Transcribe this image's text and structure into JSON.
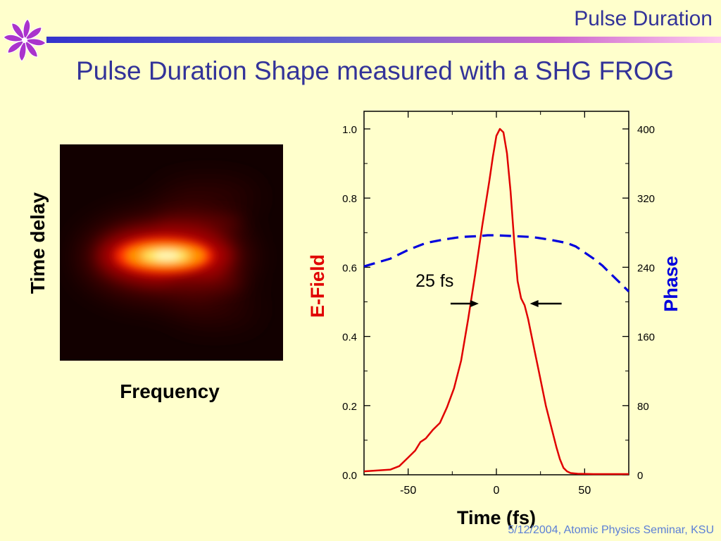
{
  "header": {
    "section_title": "Pulse Duration"
  },
  "slide": {
    "title": "Pulse Duration Shape measured with a SHG FROG"
  },
  "frog": {
    "ylabel": "Time delay",
    "xlabel": "Frequency",
    "colormap": "hot"
  },
  "footer": {
    "text": "5/12/2004, Atomic Physics Seminar, KSU"
  },
  "colors": {
    "title": "#333399",
    "efield": "#e00000",
    "phase": "#0000dd",
    "background": "#ffffcc"
  },
  "chart_data": {
    "type": "line",
    "title": "",
    "xlabel": "Time (fs)",
    "ylabel": "E-Field",
    "y2label": "Phase",
    "xlim": [
      -75,
      75
    ],
    "ylim": [
      0,
      1.0
    ],
    "y2lim": [
      0,
      400
    ],
    "xticks": [
      "-50",
      "0",
      "50"
    ],
    "xtick_values": [
      -50,
      0,
      50
    ],
    "yticks": [
      "0.0",
      "0.2",
      "0.4",
      "0.6",
      "0.8",
      "1.0"
    ],
    "ytick_values": [
      0,
      0.2,
      0.4,
      0.6,
      0.8,
      1.0
    ],
    "y2ticks": [
      "0",
      "80",
      "160",
      "240",
      "320",
      "400"
    ],
    "y2tick_values": [
      0,
      80,
      160,
      240,
      320,
      400
    ],
    "grid": false,
    "series": [
      {
        "name": "E-Field",
        "axis": "left",
        "style": "solid",
        "x": [
          -75,
          -60,
          -55,
          -50,
          -46,
          -43,
          -40,
          -36,
          -32,
          -28,
          -24,
          -20,
          -16,
          -12,
          -8,
          -4,
          -2,
          0,
          2,
          4,
          6,
          8,
          10,
          12,
          14,
          16,
          18,
          20,
          22,
          24,
          26,
          28,
          30,
          32,
          34,
          36,
          38,
          40,
          42,
          46,
          55,
          75
        ],
        "values": [
          0.01,
          0.015,
          0.025,
          0.05,
          0.07,
          0.095,
          0.105,
          0.13,
          0.15,
          0.195,
          0.25,
          0.33,
          0.45,
          0.58,
          0.72,
          0.85,
          0.92,
          0.98,
          1.0,
          0.99,
          0.93,
          0.82,
          0.68,
          0.56,
          0.51,
          0.49,
          0.45,
          0.4,
          0.35,
          0.3,
          0.25,
          0.2,
          0.16,
          0.12,
          0.08,
          0.045,
          0.02,
          0.01,
          0.005,
          0.003,
          0.002,
          0.002
        ]
      },
      {
        "name": "Phase",
        "axis": "right",
        "style": "dashed",
        "x": [
          -75,
          -60,
          -50,
          -40,
          -30,
          -20,
          -10,
          -5,
          0,
          10,
          20,
          30,
          40,
          45,
          50,
          55,
          60,
          65,
          70,
          75
        ],
        "values": [
          241,
          250,
          260,
          268,
          272,
          275,
          276,
          277,
          277,
          276,
          275,
          272,
          268,
          264,
          257,
          250,
          242,
          232,
          222,
          212
        ]
      }
    ],
    "annotations": [
      {
        "text": "25 fs",
        "x": -35,
        "y": 0.56
      }
    ],
    "fwhm_arrows": {
      "left_tip": -10,
      "right_tip": 19,
      "y": 0.495
    }
  }
}
